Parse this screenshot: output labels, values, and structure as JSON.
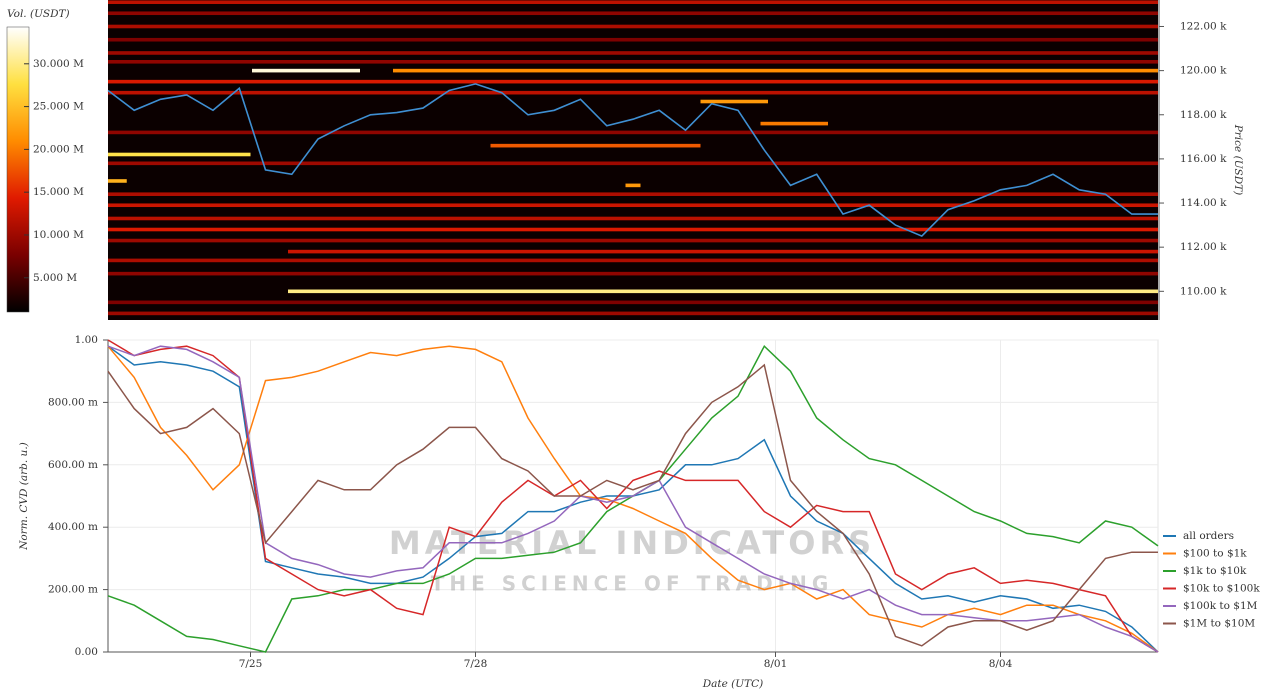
{
  "chart_data": [
    {
      "type": "heatmap",
      "y_label": "Price (USDT)",
      "colorbar_label": "Vol. (USDT)",
      "x": [
        23.1,
        23.45,
        23.8,
        24.15,
        24.5,
        24.85,
        25.2,
        25.55,
        25.9,
        26.25,
        26.6,
        26.95,
        27.3,
        27.65,
        28.0,
        28.35,
        28.7,
        29.05,
        29.4,
        29.75,
        30.1,
        30.45,
        30.8,
        31.15,
        31.5,
        31.85,
        32.2,
        32.55,
        32.9,
        33.25,
        33.6,
        33.95,
        34.3,
        34.65,
        35.0,
        35.35,
        35.7,
        36.05,
        36.4,
        36.75,
        37.1
      ],
      "xlim": [
        23.1,
        37.1
      ],
      "ylim": [
        108.7,
        123.2
      ],
      "yticks": [
        {
          "value": 110,
          "label": "110.00 k"
        },
        {
          "value": 112,
          "label": "112.00 k"
        },
        {
          "value": 114,
          "label": "114.00 k"
        },
        {
          "value": 116,
          "label": "116.00 k"
        },
        {
          "value": 118,
          "label": "118.00 k"
        },
        {
          "value": 120,
          "label": "120.00 k"
        },
        {
          "value": 122,
          "label": "122.00 k"
        }
      ],
      "clim": [
        1,
        34.3
      ],
      "cticks": [
        {
          "value": 5,
          "label": "5.000 M"
        },
        {
          "value": 10,
          "label": "10.000 M"
        },
        {
          "value": 15,
          "label": "15.000 M"
        },
        {
          "value": 20,
          "label": "20.000 M"
        },
        {
          "value": 25,
          "label": "25.000 M"
        },
        {
          "value": 30,
          "label": "30.000 M"
        }
      ],
      "colorscale": [
        "#000000",
        "#7a0000",
        "#e01a00",
        "#ff8c00",
        "#ffe040",
        "#ffffff"
      ],
      "bands": [
        {
          "price": 123.1,
          "start": 23.1,
          "end": 37.1,
          "volume": 12
        },
        {
          "price": 122.6,
          "start": 23.1,
          "end": 37.1,
          "volume": 9
        },
        {
          "price": 122.0,
          "start": 23.1,
          "end": 37.1,
          "volume": 11
        },
        {
          "price": 121.4,
          "start": 23.1,
          "end": 37.1,
          "volume": 8
        },
        {
          "price": 120.8,
          "start": 23.1,
          "end": 37.1,
          "volume": 10
        },
        {
          "price": 120.4,
          "start": 23.1,
          "end": 37.1,
          "volume": 9
        },
        {
          "price": 120.0,
          "start": 25.02,
          "end": 26.46,
          "volume": 33
        },
        {
          "price": 120.0,
          "start": 26.9,
          "end": 37.1,
          "volume": 21
        },
        {
          "price": 119.5,
          "start": 23.1,
          "end": 37.1,
          "volume": 14
        },
        {
          "price": 119.0,
          "start": 23.1,
          "end": 37.1,
          "volume": 12
        },
        {
          "price": 118.6,
          "start": 31.0,
          "end": 31.9,
          "volume": 22
        },
        {
          "price": 117.6,
          "start": 31.8,
          "end": 32.7,
          "volume": 20
        },
        {
          "price": 117.2,
          "start": 23.1,
          "end": 37.1,
          "volume": 9
        },
        {
          "price": 116.6,
          "start": 28.2,
          "end": 31.0,
          "volume": 18
        },
        {
          "price": 116.2,
          "start": 23.1,
          "end": 25.0,
          "volume": 28
        },
        {
          "price": 115.8,
          "start": 23.1,
          "end": 37.1,
          "volume": 10
        },
        {
          "price": 115.0,
          "start": 23.1,
          "end": 23.35,
          "volume": 24
        },
        {
          "price": 114.8,
          "start": 30.0,
          "end": 30.2,
          "volume": 22
        },
        {
          "price": 114.4,
          "start": 23.1,
          "end": 37.1,
          "volume": 11
        },
        {
          "price": 113.9,
          "start": 23.1,
          "end": 37.1,
          "volume": 13
        },
        {
          "price": 113.3,
          "start": 23.1,
          "end": 37.1,
          "volume": 12
        },
        {
          "price": 112.8,
          "start": 23.1,
          "end": 37.1,
          "volume": 14
        },
        {
          "price": 112.3,
          "start": 23.1,
          "end": 37.1,
          "volume": 10
        },
        {
          "price": 111.8,
          "start": 25.5,
          "end": 37.1,
          "volume": 13
        },
        {
          "price": 111.4,
          "start": 23.1,
          "end": 37.1,
          "volume": 11
        },
        {
          "price": 110.8,
          "start": 23.1,
          "end": 37.1,
          "volume": 9
        },
        {
          "price": 110.0,
          "start": 25.5,
          "end": 37.1,
          "volume": 30
        },
        {
          "price": 109.5,
          "start": 23.1,
          "end": 37.1,
          "volume": 8
        },
        {
          "price": 109.0,
          "start": 23.1,
          "end": 37.1,
          "volume": 10
        }
      ],
      "series": [
        {
          "color": "#3f8fd2",
          "values": [
            119.1,
            118.2,
            118.7,
            118.9,
            118.2,
            119.2,
            115.5,
            115.3,
            116.9,
            117.5,
            118.0,
            118.1,
            118.3,
            119.1,
            119.4,
            119.0,
            118.0,
            118.2,
            118.7,
            117.5,
            117.8,
            118.2,
            117.3,
            118.5,
            118.2,
            116.4,
            114.8,
            115.3,
            113.5,
            113.9,
            113.0,
            112.5,
            113.7,
            114.1,
            114.6,
            114.8,
            115.3,
            114.6,
            114.4,
            113.5,
            113.5
          ]
        }
      ]
    },
    {
      "type": "line",
      "x_label": "Date (UTC)",
      "y_label": "Norm. CVD (arb. u.)",
      "watermark": [
        "MATERIAL INDICATORS",
        "THE SCIENCE OF TRADING"
      ],
      "x": [
        23.1,
        23.45,
        23.8,
        24.15,
        24.5,
        24.85,
        25.2,
        25.55,
        25.9,
        26.25,
        26.6,
        26.95,
        27.3,
        27.65,
        28.0,
        28.35,
        28.7,
        29.05,
        29.4,
        29.75,
        30.1,
        30.45,
        30.8,
        31.15,
        31.5,
        31.85,
        32.2,
        32.55,
        32.9,
        33.25,
        33.6,
        33.95,
        34.3,
        34.65,
        35.0,
        35.35,
        35.7,
        36.05,
        36.4,
        36.75,
        37.1
      ],
      "xlim": [
        23.1,
        37.1
      ],
      "xticks": [
        {
          "value": 25,
          "label": "7/25"
        },
        {
          "value": 28,
          "label": "7/28"
        },
        {
          "value": 32,
          "label": "8/01"
        },
        {
          "value": 35,
          "label": "8/04"
        }
      ],
      "ylim": [
        0,
        1
      ],
      "yticks": [
        {
          "value": 0,
          "label": "0.00"
        },
        {
          "value": 0.2,
          "label": "200.00 m"
        },
        {
          "value": 0.4,
          "label": "400.00 m"
        },
        {
          "value": 0.6,
          "label": "600.00 m"
        },
        {
          "value": 0.8,
          "label": "800.00 m"
        },
        {
          "value": 1,
          "label": "1.00"
        }
      ],
      "grid": true,
      "legend": "lower right",
      "series": [
        {
          "name": "all orders",
          "color": "#1f77b4",
          "values": [
            0.98,
            0.92,
            0.93,
            0.92,
            0.9,
            0.85,
            0.29,
            0.27,
            0.25,
            0.24,
            0.22,
            0.22,
            0.24,
            0.3,
            0.37,
            0.38,
            0.45,
            0.45,
            0.48,
            0.5,
            0.5,
            0.52,
            0.6,
            0.6,
            0.62,
            0.68,
            0.5,
            0.42,
            0.38,
            0.3,
            0.22,
            0.17,
            0.18,
            0.16,
            0.18,
            0.17,
            0.14,
            0.15,
            0.13,
            0.08,
            0.0
          ]
        },
        {
          "name": "$100 to $1k",
          "color": "#ff7f0e",
          "values": [
            0.98,
            0.88,
            0.72,
            0.63,
            0.52,
            0.6,
            0.87,
            0.88,
            0.9,
            0.93,
            0.96,
            0.95,
            0.97,
            0.98,
            0.97,
            0.93,
            0.75,
            0.62,
            0.5,
            0.49,
            0.46,
            0.42,
            0.38,
            0.3,
            0.23,
            0.2,
            0.22,
            0.17,
            0.2,
            0.12,
            0.1,
            0.08,
            0.12,
            0.14,
            0.12,
            0.15,
            0.15,
            0.12,
            0.1,
            0.06,
            0.0
          ]
        },
        {
          "name": "$1k to $10k",
          "color": "#2ca02c",
          "values": [
            0.18,
            0.15,
            0.1,
            0.05,
            0.04,
            0.02,
            0.0,
            0.17,
            0.18,
            0.2,
            0.2,
            0.22,
            0.22,
            0.25,
            0.3,
            0.3,
            0.31,
            0.32,
            0.35,
            0.45,
            0.5,
            0.55,
            0.65,
            0.75,
            0.82,
            0.98,
            0.9,
            0.75,
            0.68,
            0.62,
            0.6,
            0.55,
            0.5,
            0.45,
            0.42,
            0.38,
            0.37,
            0.35,
            0.42,
            0.4,
            0.34
          ]
        },
        {
          "name": "$10k to $100k",
          "color": "#d62728",
          "values": [
            1.0,
            0.95,
            0.97,
            0.98,
            0.95,
            0.88,
            0.3,
            0.25,
            0.2,
            0.18,
            0.2,
            0.14,
            0.12,
            0.4,
            0.37,
            0.48,
            0.55,
            0.5,
            0.55,
            0.46,
            0.55,
            0.58,
            0.55,
            0.55,
            0.55,
            0.45,
            0.4,
            0.47,
            0.45,
            0.45,
            0.25,
            0.2,
            0.25,
            0.27,
            0.22,
            0.23,
            0.22,
            0.2,
            0.18,
            0.05,
            0.0
          ]
        },
        {
          "name": "$100k to $1M",
          "color": "#9467bd",
          "values": [
            0.98,
            0.95,
            0.98,
            0.97,
            0.93,
            0.88,
            0.35,
            0.3,
            0.28,
            0.25,
            0.24,
            0.26,
            0.27,
            0.35,
            0.35,
            0.35,
            0.38,
            0.42,
            0.5,
            0.48,
            0.5,
            0.55,
            0.4,
            0.35,
            0.3,
            0.25,
            0.22,
            0.2,
            0.17,
            0.2,
            0.15,
            0.12,
            0.12,
            0.11,
            0.1,
            0.1,
            0.11,
            0.12,
            0.08,
            0.05,
            0.0
          ]
        },
        {
          "name": "$1M to $10M",
          "color": "#8c564b",
          "values": [
            0.9,
            0.78,
            0.7,
            0.72,
            0.78,
            0.7,
            0.35,
            0.45,
            0.55,
            0.52,
            0.52,
            0.6,
            0.65,
            0.72,
            0.72,
            0.62,
            0.58,
            0.5,
            0.5,
            0.55,
            0.52,
            0.55,
            0.7,
            0.8,
            0.85,
            0.92,
            0.55,
            0.45,
            0.38,
            0.25,
            0.05,
            0.02,
            0.08,
            0.1,
            0.1,
            0.07,
            0.1,
            0.2,
            0.3,
            0.32,
            0.32
          ]
        }
      ]
    }
  ]
}
